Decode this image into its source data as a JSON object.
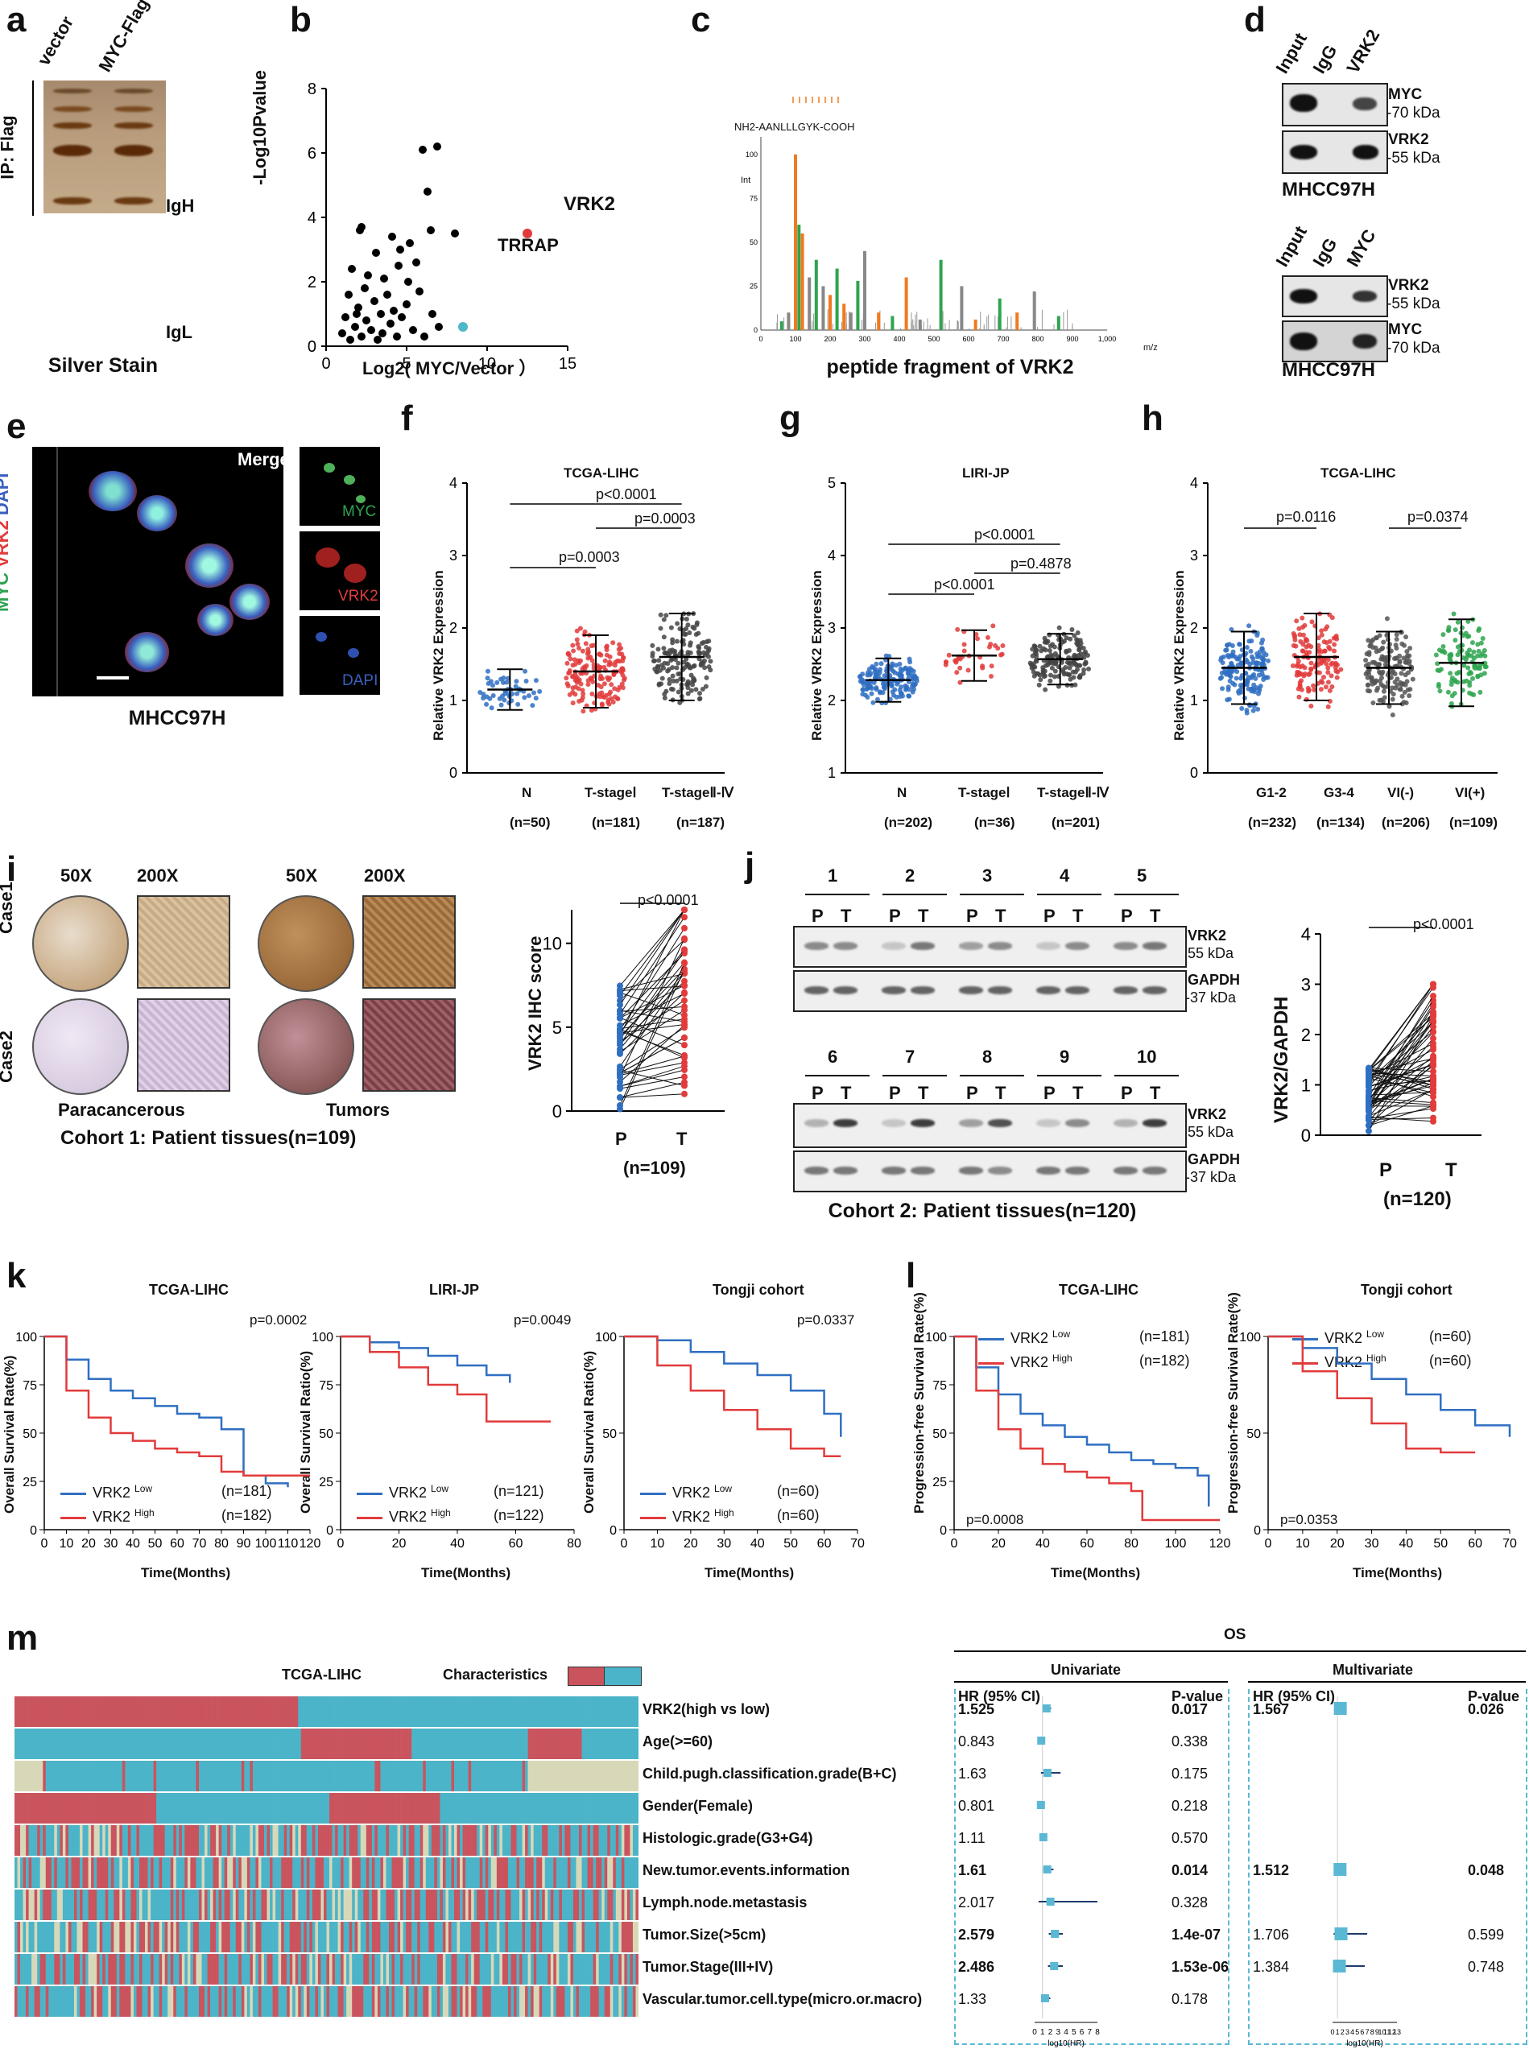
{
  "panels": {
    "a": "a",
    "b": "b",
    "c": "c",
    "d": "d",
    "e": "e",
    "f": "f",
    "g": "g",
    "h": "h",
    "i": "i",
    "j": "j",
    "k": "k",
    "l": "l",
    "m": "m"
  },
  "a": {
    "lanes": [
      "vector",
      "MYC-Flag"
    ],
    "side": "IP: Flag",
    "igh": "IgH",
    "igl": "IgL",
    "caption": "Silver Stain"
  },
  "b": {
    "ylabel": "-Log10Pvalue",
    "xlabel": "Log2( MYC/Vector ）",
    "vrk2": "VRK2",
    "trrap": "TRRAP"
  },
  "c": {
    "peptide": "NH2-AANLLLGYK-COOH",
    "caption": "peptide fragment of VRK2",
    "xaxis": "m/z",
    "yaxis": "Int"
  },
  "d": {
    "blot1": {
      "lanes": [
        "Input",
        "IgG",
        "VRK2"
      ],
      "rows": [
        {
          "label": "MYC",
          "kda": "-70 kDa"
        },
        {
          "label": "VRK2",
          "kda": "-55 kDa"
        }
      ]
    },
    "blot2": {
      "lanes": [
        "Input",
        "IgG",
        "MYC"
      ],
      "rows": [
        {
          "label": "VRK2",
          "kda": "-55 kDa"
        },
        {
          "label": "MYC",
          "kda": "-70 kDa"
        }
      ]
    },
    "cell": "MHCC97H"
  },
  "e": {
    "merge": "Merge",
    "myc": "MYC",
    "vrk2": "VRK2",
    "dapi": "DAPI",
    "side": [
      "MYC",
      "/",
      "VRK2",
      "/",
      "DAPI"
    ],
    "caption": "MHCC97H"
  },
  "f": {
    "title": "TCGA-LIHC",
    "ylabel": "Relative VRK2 Expression",
    "groups": [
      "N",
      "T-stageⅠ",
      "T-stageⅡ-Ⅳ"
    ],
    "ns": [
      "(n=50)",
      "(n=181)",
      "(n=187)"
    ],
    "p": [
      "p=0.0003",
      "p=0.0003",
      "p<0.0001"
    ]
  },
  "g": {
    "title": "LIRI-JP",
    "ylabel": "Relative VRK2 Expression",
    "groups": [
      "N",
      "T-stageⅠ",
      "T-stageⅡ-Ⅳ"
    ],
    "ns": [
      "(n=202)",
      "(n=36)",
      "(n=201)"
    ],
    "p": [
      "p<0.0001",
      "p=0.4878",
      "p<0.0001"
    ]
  },
  "h": {
    "title": "TCGA-LIHC",
    "ylabel": "Relative VRK2 Expression",
    "groups": [
      "G1-2",
      "G3-4",
      "VI(-)",
      "VI(+)"
    ],
    "ns": [
      "(n=232)",
      "(n=134)",
      "(n=206)",
      "(n=109)"
    ],
    "p": [
      "p=0.0116",
      "p=0.0374"
    ]
  },
  "i": {
    "mag": [
      "50X",
      "200X",
      "50X",
      "200X"
    ],
    "cases": [
      "Case1",
      "Case2"
    ],
    "para": "Paracancerous",
    "tumor": "Tumors",
    "caption": "Cohort 1: Patient tissues(n=109)",
    "score_label": "VRK2 IHC  score",
    "p": "p<0.0001",
    "x": [
      "P",
      "T"
    ],
    "n": "(n=109)"
  },
  "j": {
    "lanes_top": [
      "1",
      "2",
      "3",
      "4",
      "5"
    ],
    "lanes_bot": [
      "6",
      "7",
      "8",
      "9",
      "10"
    ],
    "pt": [
      "P",
      "T"
    ],
    "rows": [
      {
        "label": "VRK2",
        "kda": "55 kDa"
      },
      {
        "label": "GAPDH",
        "kda": "-37 kDa"
      }
    ],
    "caption": "Cohort 2: Patient tissues(n=120)",
    "ylabel": "VRK2/GAPDH",
    "p": "p<0.0001",
    "x": [
      "P",
      "T"
    ],
    "n": "(n=120)"
  },
  "k": {
    "ylabel1": "Overall Survival Rate(%)",
    "ylabel2": "Overall Survival Ratio(%)",
    "xlabel": "Time(Months)",
    "plots": [
      {
        "title": "TCGA-LIHC",
        "p": "p=0.0002",
        "low": "(n=181)",
        "high": "(n=182)"
      },
      {
        "title": "LIRI-JP",
        "p": "p=0.0049",
        "low": "(n=121)",
        "high": "(n=122)"
      },
      {
        "title": "Tongji cohort",
        "p": "p=0.0337",
        "low": "(n=60)",
        "high": "(n=60)"
      }
    ],
    "low_label": "VRK2",
    "low_sup": "Low",
    "high_sup": "High"
  },
  "l": {
    "ylabel": "Progression-free Survival Rate(%)",
    "xlabel": "Time(Months)",
    "plots": [
      {
        "title": "TCGA-LIHC",
        "p": "p=0.0008",
        "low": "(n=181)",
        "high": "(n=182)"
      },
      {
        "title": "Tongji cohort",
        "p": "p=0.0353",
        "low": "(n=60)",
        "high": "(n=60)"
      }
    ]
  },
  "m": {
    "title": "TCGA-LIHC",
    "characteristics": "Characteristics",
    "os": "OS",
    "uni": "Univariate",
    "multi": "Multivariate",
    "hr": "HR (95% CI)",
    "pv": "P-value",
    "log": "log10(HR)",
    "rows": [
      {
        "name": "VRK2(high vs low)",
        "hr": "1.525",
        "p": "0.017",
        "mhr": "1.567",
        "mp": "0.026"
      },
      {
        "name": "Age(>=60)",
        "hr": "0.843",
        "p": "0.338",
        "mhr": "",
        "mp": ""
      },
      {
        "name": "Child.pugh.classification.grade(B+C)",
        "hr": "1.63",
        "p": "0.175",
        "mhr": "",
        "mp": ""
      },
      {
        "name": "Gender(Female)",
        "hr": "0.801",
        "p": "0.218",
        "mhr": "",
        "mp": ""
      },
      {
        "name": "Histologic.grade(G3+G4)",
        "hr": "1.11",
        "p": "0.570",
        "mhr": "",
        "mp": ""
      },
      {
        "name": "New.tumor.events.information",
        "hr": "1.61",
        "p": "0.014",
        "mhr": "1.512",
        "mp": "0.048"
      },
      {
        "name": "Lymph.node.metastasis",
        "hr": "2.017",
        "p": "0.328",
        "mhr": "",
        "mp": ""
      },
      {
        "name": "Tumor.Size(>5cm)",
        "hr": "2.579",
        "p": "1.4e-07",
        "mhr": "1.706",
        "mp": "0.599"
      },
      {
        "name": "Tumor.Stage(III+IV)",
        "hr": "2.486",
        "p": "1.53e-06",
        "mhr": "1.384",
        "mp": "0.748"
      },
      {
        "name": "Vascular.tumor.cell.type(micro.or.macro)",
        "hr": "1.33",
        "p": "0.178",
        "mhr": "",
        "mp": ""
      }
    ],
    "uni_ticks": [
      "0",
      "1",
      "2",
      "3",
      "4",
      "5",
      "6",
      "7",
      "8"
    ],
    "multi_ticks": [
      "0",
      "1",
      "2",
      "3",
      "4",
      "5",
      "6",
      "7",
      "8",
      "9",
      "10",
      "11",
      "12",
      "13"
    ]
  },
  "colors": {
    "red": "#e23b3b",
    "blue": "#2f6fc2",
    "green": "#2ea44f",
    "teal": "#4fb7c9",
    "orange": "#f07a1f",
    "heat_red": "#c9545e",
    "heat_teal": "#4bb4c8",
    "heat_beige": "#d8d8b8",
    "forest": "#5bb8d4"
  },
  "chart_data": [
    {
      "type": "scatter",
      "title": "",
      "xlabel": "Log2(MYC/Vector)",
      "ylabel": "-Log10Pvalue",
      "xlim": [
        0,
        15
      ],
      "ylim": [
        0,
        8
      ],
      "points": [
        [
          1,
          0.4
        ],
        [
          1.2,
          0.9
        ],
        [
          1.4,
          1.6
        ],
        [
          1.5,
          0.2
        ],
        [
          1.6,
          2.4
        ],
        [
          1.8,
          0.6
        ],
        [
          2,
          1.2
        ],
        [
          2.1,
          3.6
        ],
        [
          2.2,
          0.3
        ],
        [
          2.4,
          1.8
        ],
        [
          2.5,
          0.8
        ],
        [
          2.6,
          2.2
        ],
        [
          2.8,
          0.5
        ],
        [
          3,
          1.4
        ],
        [
          3.1,
          2.9
        ],
        [
          3.2,
          0.2
        ],
        [
          3.4,
          1.0
        ],
        [
          3.5,
          0.4
        ],
        [
          3.6,
          2.1
        ],
        [
          3.8,
          1.6
        ],
        [
          4,
          0.7
        ],
        [
          4.1,
          3.4
        ],
        [
          4.2,
          1.1
        ],
        [
          4.4,
          0.3
        ],
        [
          4.5,
          2.5
        ],
        [
          4.7,
          0.9
        ],
        [
          5,
          1.3
        ],
        [
          5.2,
          3.2
        ],
        [
          5.4,
          0.5
        ],
        [
          5.6,
          2.6
        ],
        [
          5.8,
          1.7
        ],
        [
          6,
          6.1
        ],
        [
          6.1,
          0.3
        ],
        [
          6.3,
          4.8
        ],
        [
          6.5,
          3.6
        ],
        [
          6.6,
          1.0
        ],
        [
          6.9,
          6.2
        ],
        [
          7,
          0.6
        ],
        [
          8,
          3.5
        ],
        [
          2.2,
          3.7
        ],
        [
          4.6,
          3.0
        ],
        [
          5.1,
          2.0
        ],
        [
          1.9,
          1.0
        ]
      ],
      "highlights": [
        {
          "label": "VRK2",
          "x": 12.5,
          "y": 3.5,
          "color": "red"
        },
        {
          "label": "TRRAP",
          "x": 8.5,
          "y": 0.6,
          "color": "teal"
        }
      ]
    },
    {
      "type": "bar",
      "title": "peptide fragment of VRK2",
      "xlabel": "m/z",
      "ylabel": "Int",
      "xlim": [
        0,
        1000
      ],
      "ylim": [
        0,
        110
      ],
      "x": [
        60,
        80,
        100,
        110,
        120,
        140,
        160,
        180,
        200,
        220,
        240,
        260,
        280,
        300,
        340,
        380,
        420,
        460,
        520,
        580,
        620,
        690,
        740,
        790,
        860
      ],
      "values": [
        5,
        10,
        100,
        60,
        55,
        30,
        40,
        25,
        20,
        35,
        15,
        10,
        28,
        45,
        10,
        8,
        30,
        6,
        40,
        25,
        6,
        18,
        10,
        22,
        8
      ]
    },
    {
      "type": "scatter",
      "title": "TCGA-LIHC",
      "ylabel": "Relative VRK2 Expression",
      "categories": [
        "N",
        "T-stageⅠ",
        "T-stageⅡ-Ⅳ"
      ],
      "means": [
        1.15,
        1.4,
        1.6
      ],
      "sd": [
        0.28,
        0.5,
        0.6
      ],
      "n": [
        50,
        181,
        187
      ],
      "ylim": [
        0,
        4
      ]
    },
    {
      "type": "scatter",
      "title": "LIRI-JP",
      "ylabel": "Relative VRK2 Expression",
      "categories": [
        "N",
        "T-stageⅠ",
        "T-stageⅡ-Ⅳ"
      ],
      "means": [
        2.28,
        2.62,
        2.57
      ],
      "sd": [
        0.3,
        0.35,
        0.35
      ],
      "n": [
        202,
        36,
        201
      ],
      "ylim": [
        1,
        5
      ]
    },
    {
      "type": "scatter",
      "title": "TCGA-LIHC",
      "ylabel": "Relative VRK2 Expression",
      "categories": [
        "G1-2",
        "G3-4",
        "VI(-)",
        "VI(+)"
      ],
      "means": [
        1.45,
        1.6,
        1.45,
        1.52
      ],
      "sd": [
        0.5,
        0.6,
        0.5,
        0.6
      ],
      "n": [
        232,
        134,
        206,
        109
      ],
      "ylim": [
        0,
        4
      ]
    },
    {
      "type": "line",
      "title": "VRK2 IHC score",
      "categories": [
        "P",
        "T"
      ],
      "ylim": [
        0,
        12
      ],
      "ticks": [
        0,
        5,
        10
      ]
    },
    {
      "type": "line",
      "title": "VRK2/GAPDH",
      "categories": [
        "P",
        "T"
      ],
      "ylim": [
        0,
        4
      ],
      "ticks": [
        0,
        1,
        2,
        3,
        4
      ]
    },
    {
      "type": "line",
      "title": "TCGA-LIHC OS",
      "xlim": [
        0,
        120
      ],
      "ylim": [
        0,
        100
      ],
      "series": [
        {
          "name": "VRK2 Low",
          "x": [
            0,
            10,
            20,
            30,
            40,
            50,
            60,
            70,
            80,
            90,
            100,
            110
          ],
          "values": [
            100,
            88,
            78,
            72,
            68,
            64,
            60,
            58,
            52,
            28,
            24,
            22
          ]
        },
        {
          "name": "VRK2 High",
          "x": [
            0,
            10,
            20,
            30,
            40,
            50,
            60,
            70,
            80,
            90,
            100,
            120
          ],
          "values": [
            100,
            72,
            58,
            50,
            46,
            42,
            40,
            38,
            30,
            28,
            28,
            28
          ]
        }
      ]
    },
    {
      "type": "line",
      "title": "LIRI-JP OS",
      "xlim": [
        0,
        80
      ],
      "ylim": [
        0,
        100
      ],
      "series": [
        {
          "name": "VRK2 Low",
          "x": [
            0,
            10,
            20,
            30,
            40,
            50,
            58
          ],
          "values": [
            100,
            97,
            94,
            90,
            85,
            80,
            76
          ]
        },
        {
          "name": "VRK2 High",
          "x": [
            0,
            10,
            20,
            30,
            40,
            50,
            60,
            72
          ],
          "values": [
            100,
            92,
            84,
            75,
            70,
            56,
            56,
            56
          ]
        }
      ]
    },
    {
      "type": "line",
      "title": "Tongji cohort OS",
      "xlim": [
        0,
        70
      ],
      "ylim": [
        0,
        100
      ],
      "series": [
        {
          "name": "VRK2 Low",
          "x": [
            0,
            10,
            20,
            30,
            40,
            50,
            60,
            65
          ],
          "values": [
            100,
            98,
            92,
            86,
            80,
            72,
            60,
            48
          ]
        },
        {
          "name": "VRK2 High",
          "x": [
            0,
            10,
            20,
            30,
            40,
            50,
            60,
            65
          ],
          "values": [
            100,
            85,
            72,
            62,
            52,
            42,
            38,
            38
          ]
        }
      ]
    },
    {
      "type": "line",
      "title": "TCGA-LIHC PFS",
      "xlim": [
        0,
        120
      ],
      "ylim": [
        0,
        100
      ],
      "series": [
        {
          "name": "VRK2 Low",
          "x": [
            0,
            10,
            20,
            30,
            40,
            50,
            60,
            70,
            80,
            90,
            100,
            110,
            115
          ],
          "values": [
            100,
            84,
            70,
            60,
            54,
            48,
            44,
            40,
            36,
            34,
            32,
            28,
            12
          ]
        },
        {
          "name": "VRK2 High",
          "x": [
            0,
            10,
            20,
            30,
            40,
            50,
            60,
            70,
            80,
            85,
            100,
            120
          ],
          "values": [
            100,
            72,
            52,
            42,
            34,
            30,
            27,
            24,
            20,
            5,
            5,
            5
          ]
        }
      ]
    },
    {
      "type": "line",
      "title": "Tongji cohort PFS",
      "xlim": [
        0,
        70
      ],
      "ylim": [
        0,
        100
      ],
      "series": [
        {
          "name": "VRK2 Low",
          "x": [
            0,
            10,
            20,
            30,
            40,
            50,
            60,
            70
          ],
          "values": [
            100,
            94,
            86,
            78,
            70,
            62,
            54,
            48
          ]
        },
        {
          "name": "VRK2 High",
          "x": [
            0,
            10,
            20,
            30,
            40,
            50,
            60
          ],
          "values": [
            100,
            82,
            68,
            55,
            42,
            40,
            40
          ]
        }
      ]
    },
    {
      "type": "table",
      "title": "Forest plot OS",
      "series": [
        {
          "name": "Univariate HR",
          "values": [
            1.525,
            0.843,
            1.63,
            0.801,
            1.11,
            1.61,
            2.017,
            2.579,
            2.486,
            1.33
          ]
        },
        {
          "name": "Multivariate HR",
          "values": [
            1.567,
            null,
            null,
            null,
            null,
            1.512,
            null,
            1.706,
            1.384,
            null
          ]
        }
      ]
    }
  ]
}
